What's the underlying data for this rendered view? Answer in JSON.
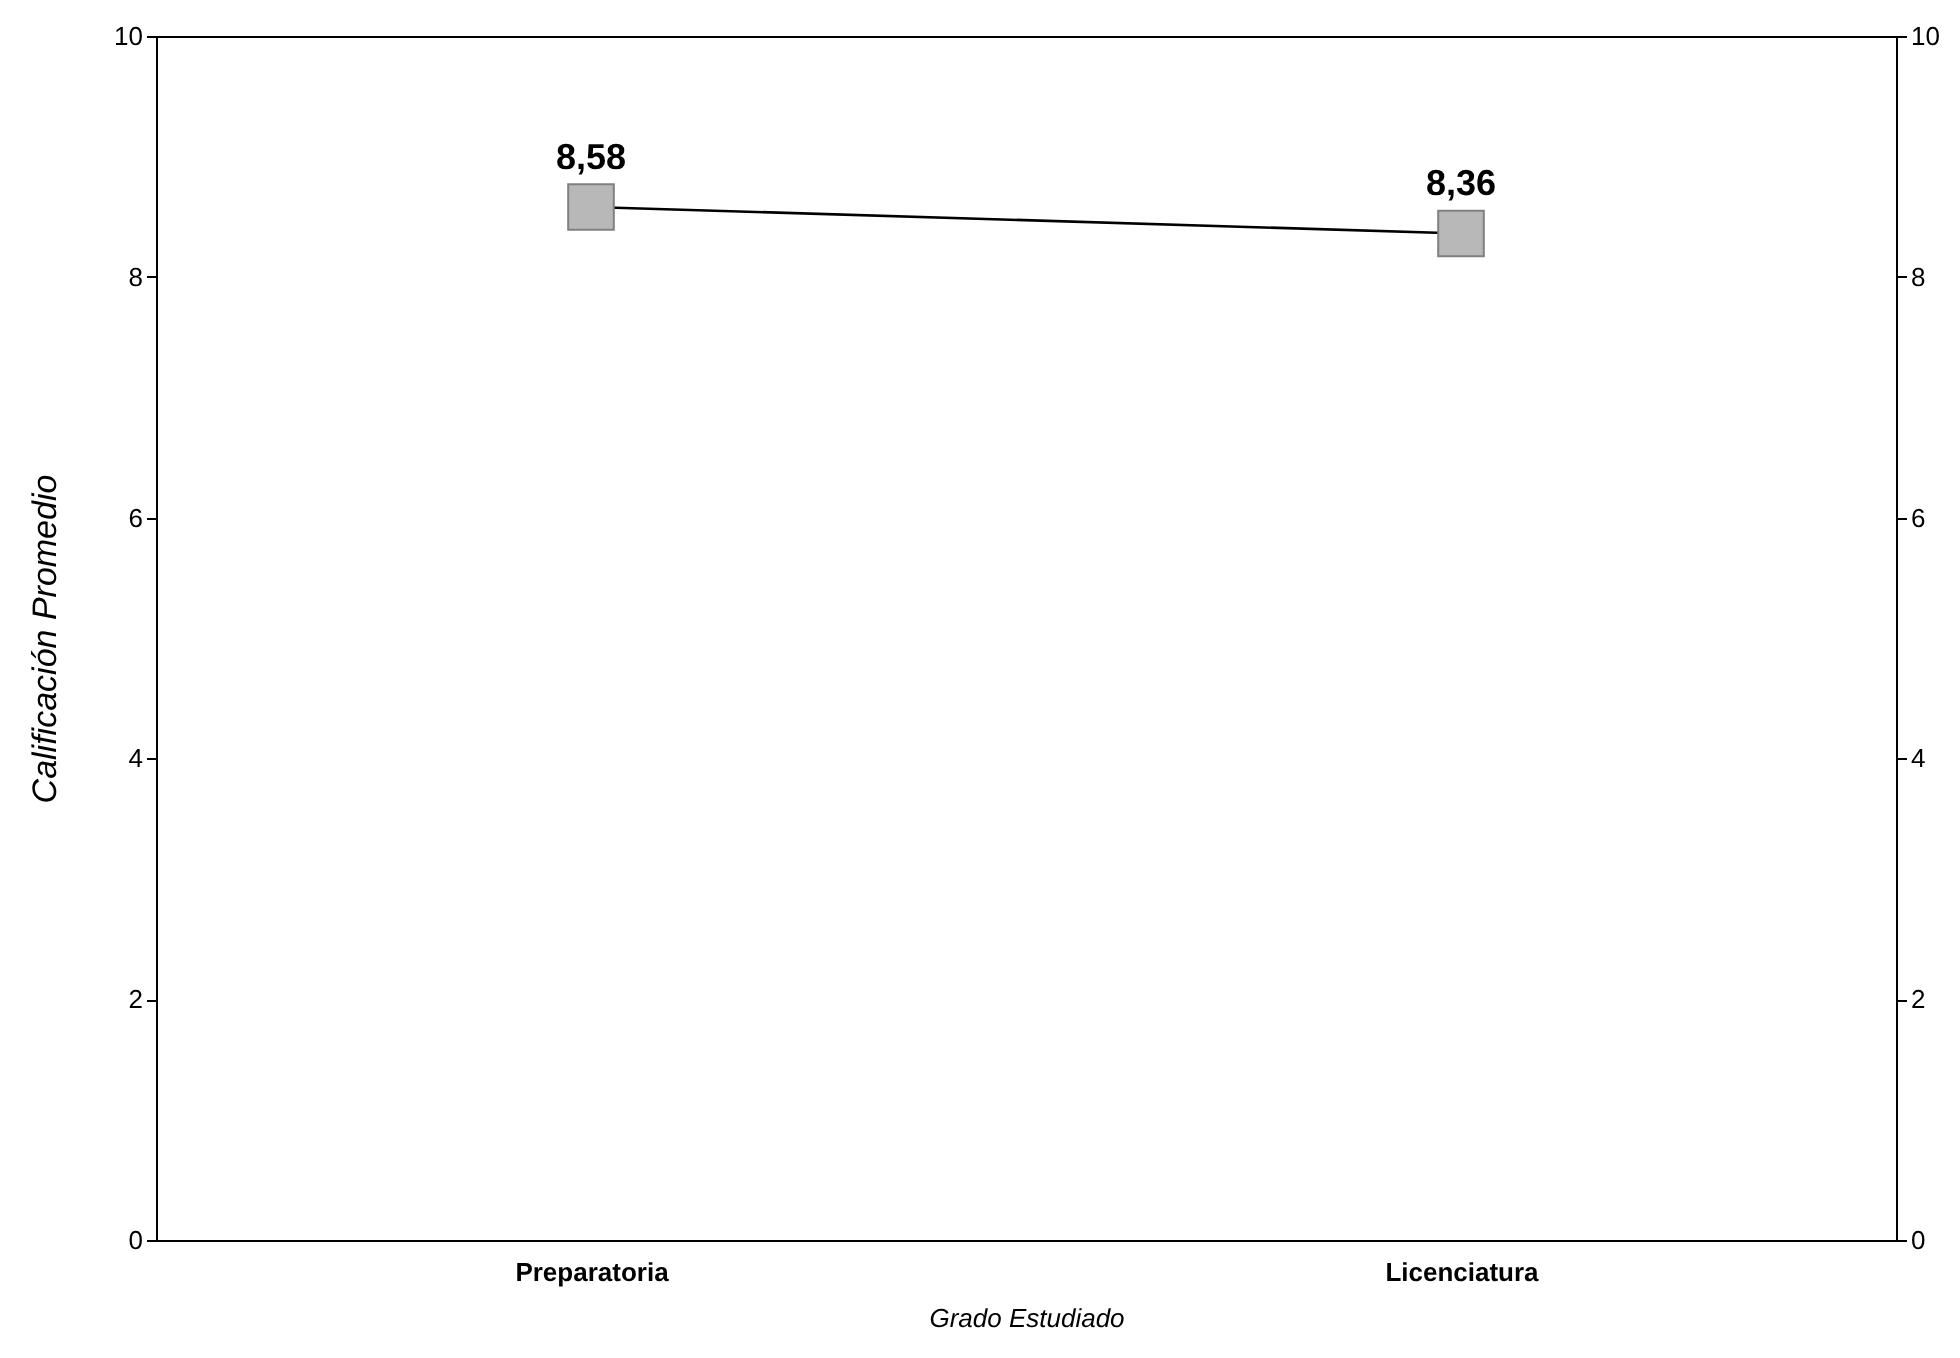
{
  "chart_data": {
    "type": "line",
    "xlabel": "Grado Estudiado",
    "ylabel": "Calificación Promedio",
    "categories": [
      "Preparatoria",
      "Licenciatura"
    ],
    "series": [
      {
        "color": "#000000",
        "values": [
          8.58,
          8.36
        ],
        "value_labels": [
          "8,58",
          "8,36"
        ]
      }
    ],
    "ylim": [
      0,
      10
    ],
    "yticks": [
      0,
      2,
      4,
      6,
      8,
      10
    ],
    "y2lim": [
      0,
      10
    ],
    "y2ticks": [
      0,
      2,
      4,
      6,
      8,
      10
    ],
    "marker": "square",
    "line_style": "solid",
    "grid": false
  }
}
